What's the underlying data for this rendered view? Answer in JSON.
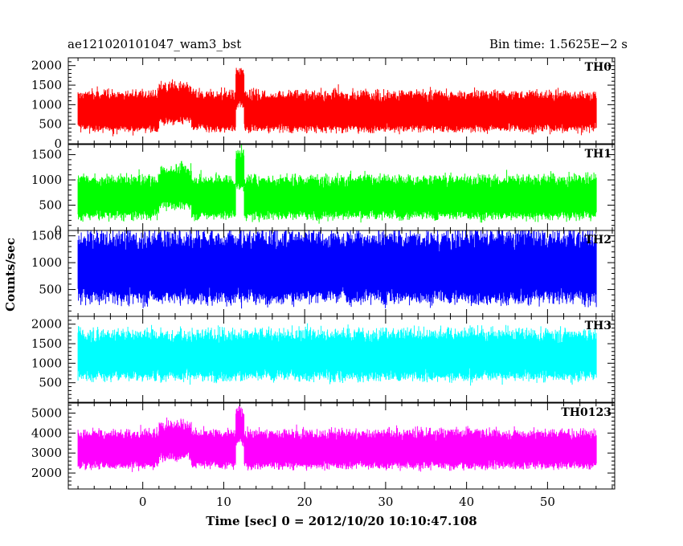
{
  "header": {
    "left_title": "ae121020101047_wam3_bst",
    "right_title": "Bin time: 1.5625E−2 s"
  },
  "axis": {
    "ylabel": "Counts/sec",
    "xlabel": "Time [sec] 0 = 2012/10/20 10:10:47.108"
  },
  "chart_data": {
    "type": "line",
    "title": "ae121020101047_wam3_bst",
    "subtitle": "Bin time: 1.5625E−2 s",
    "xlabel": "Time [sec] 0 = 2012/10/20 10:10:47.108",
    "ylabel": "Counts/sec",
    "xlim": [
      -9.2,
      58.3
    ],
    "data_x_range": [
      -8,
      56
    ],
    "x_ticks": [
      0,
      10,
      20,
      30,
      40,
      50
    ],
    "grid": false,
    "legend": "none",
    "panels": [
      {
        "name": "TH0",
        "color": "#ff0000",
        "ylim": [
          0,
          2200
        ],
        "y_ticks": [
          0,
          500,
          1000,
          1500,
          2000
        ],
        "baseline": 700,
        "noise": 480,
        "features": [
          {
            "x": [
              2,
              6
            ],
            "level": 900
          },
          {
            "x": [
              11.5,
              12.5
            ],
            "level": 1300
          }
        ]
      },
      {
        "name": "TH1",
        "color": "#00ff00",
        "ylim": [
          0,
          1700
        ],
        "y_ticks": [
          0,
          500,
          1000,
          1500
        ],
        "baseline": 550,
        "noise": 400,
        "features": [
          {
            "x": [
              2,
              6
            ],
            "level": 750
          },
          {
            "x": [
              11.5,
              12.5
            ],
            "level": 1100
          }
        ]
      },
      {
        "name": "TH2",
        "color": "#0000ff",
        "ylim": [
          0,
          1600
        ],
        "y_ticks": [
          500,
          1000,
          1500
        ],
        "baseline": 750,
        "noise": 620,
        "features": []
      },
      {
        "name": "TH3",
        "color": "#00ffff",
        "ylim": [
          0,
          2200
        ],
        "y_ticks": [
          500,
          1000,
          1500,
          2000
        ],
        "baseline": 1050,
        "noise": 600,
        "features": []
      },
      {
        "name": "TH0123",
        "color": "#ff00ff",
        "ylim": [
          1200,
          5500
        ],
        "y_ticks": [
          2000,
          3000,
          4000,
          5000
        ],
        "baseline": 2950,
        "noise": 900,
        "features": [
          {
            "x": [
              2,
              6
            ],
            "level": 3400
          },
          {
            "x": [
              11.5,
              12.5
            ],
            "level": 4100
          }
        ]
      }
    ]
  }
}
